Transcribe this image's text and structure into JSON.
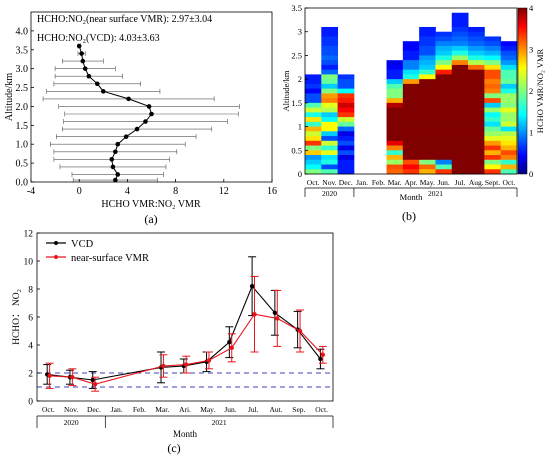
{
  "panel_labels": {
    "a": "(a)",
    "b": "(b)",
    "c": "(c)"
  },
  "colors": {
    "black_series": "#000000",
    "red_series": "#e8141b",
    "ref_lines": "#4040c0"
  },
  "chart_data": [
    {
      "id": "a",
      "type": "line",
      "xlabel": "HCHO VMR:NO₂ VMR",
      "ylabel": "Altitude/km",
      "xlim": [
        -4,
        16
      ],
      "ylim": [
        0,
        4.5
      ],
      "xticks": [
        -4,
        0,
        4,
        8,
        12,
        16
      ],
      "yticks": [
        0.0,
        0.5,
        1.0,
        1.5,
        2.0,
        2.5,
        3.0,
        3.5,
        4.0
      ],
      "ytick_labels": [
        "0.0",
        "0.5",
        "1.0",
        "1.5",
        "2.0",
        "2.5",
        "3.0",
        "3.5",
        "4.0"
      ],
      "annotations": [
        {
          "text": "HCHO:NO₂(near surface VMR):  2.97±3.04"
        },
        {
          "text": "HCHO:NO₂(VCD):  4.03±3.63"
        }
      ],
      "series": [
        {
          "points": [
            {
              "alt": 0.05,
              "x": 3.0,
              "err": 3.5
            },
            {
              "alt": 0.2,
              "x": 3.2,
              "err": 3.8
            },
            {
              "alt": 0.4,
              "x": 2.8,
              "err": 4.4
            },
            {
              "alt": 0.6,
              "x": 2.7,
              "err": 4.8
            },
            {
              "alt": 0.8,
              "x": 3.0,
              "err": 5.1
            },
            {
              "alt": 1.0,
              "x": 3.2,
              "err": 5.6
            },
            {
              "alt": 1.2,
              "x": 3.9,
              "err": 5.8
            },
            {
              "alt": 1.4,
              "x": 4.8,
              "err": 6.2
            },
            {
              "alt": 1.6,
              "x": 5.5,
              "err": 6.8
            },
            {
              "alt": 1.8,
              "x": 6.0,
              "err": 7.2
            },
            {
              "alt": 2.0,
              "x": 5.8,
              "err": 7.5
            },
            {
              "alt": 2.2,
              "x": 4.1,
              "err": 7.1
            },
            {
              "alt": 2.4,
              "x": 2.0,
              "err": 4.7
            },
            {
              "alt": 2.6,
              "x": 1.5,
              "err": 3.6
            },
            {
              "alt": 2.8,
              "x": 0.8,
              "err": 2.8
            },
            {
              "alt": 3.0,
              "x": 0.5,
              "err": 2.5
            },
            {
              "alt": 3.2,
              "x": 0.3,
              "err": 1.7
            },
            {
              "alt": 3.4,
              "x": 0.2,
              "err": 0.3
            },
            {
              "alt": 3.6,
              "x": 0.0,
              "err": 0.1
            }
          ]
        }
      ]
    },
    {
      "id": "b",
      "type": "heatmap",
      "ylabel": "Altitude/km",
      "xlabel": "Month",
      "colorbar_label": "HCHO VMR/NO₂ VMR",
      "zlim": [
        0,
        4
      ],
      "colorbar_ticks": [
        0,
        1,
        2,
        3,
        4
      ],
      "ylim": [
        0,
        3.5
      ],
      "yticks": [
        0.0,
        0.5,
        1.0,
        1.5,
        2.0,
        2.5,
        3.0,
        3.5
      ],
      "ytick_labels": [
        "0",
        "0.5",
        "1",
        "1.5",
        "2",
        "2.5",
        "3",
        "3.5"
      ],
      "months": [
        "Oct.",
        "Nov.",
        "Dec.",
        "Jan.",
        "Feb.",
        "Mar.",
        "Apr.",
        "May.",
        "Jun.",
        "Jul.",
        "Aug.",
        "Sept.",
        "Oct."
      ],
      "years": [
        {
          "label": "2020",
          "months": 3
        },
        {
          "label": "2021",
          "months": 10
        }
      ],
      "altitude_bins": [
        0.05,
        0.15,
        0.25,
        0.35,
        0.45,
        0.55,
        0.65,
        0.75,
        0.85,
        0.95,
        1.05,
        1.15,
        1.25,
        1.35,
        1.45,
        1.55,
        1.65,
        1.75,
        1.85,
        1.95,
        2.05,
        2.15,
        2.25,
        2.35,
        2.45,
        2.55,
        2.65,
        2.75,
        2.85,
        2.95,
        3.05,
        3.15,
        3.25,
        3.35
      ],
      "columns_top_to_bottom": [
        [
          null,
          null,
          null,
          null,
          null,
          null,
          null,
          null,
          null,
          null,
          null,
          null,
          null,
          0.6,
          0.6,
          0.7,
          0.5,
          0.8,
          0.8,
          1.8,
          2.3,
          1.6,
          2.6,
          1.7,
          2.8,
          2.3,
          2.6,
          3.3,
          2.0,
          2.7,
          1.1,
          1.3,
          1.5,
          2.0
        ],
        [
          null,
          null,
          null,
          0.6,
          0.6,
          0.7,
          0.7,
          0.8,
          0.8,
          0.9,
          0.8,
          0.6,
          0.9,
          2.0,
          1.9,
          1.3,
          2.0,
          2.9,
          3.0,
          2.4,
          2.2,
          1.3,
          1.5,
          2.5,
          2.5,
          1.3,
          0.8,
          2.3,
          1.7,
          2.4,
          1.4,
          1.6,
          0.8,
          1.8
        ],
        [
          null,
          null,
          null,
          null,
          null,
          null,
          null,
          null,
          null,
          null,
          null,
          null,
          null,
          0.7,
          0.8,
          0.8,
          1.5,
          3.3,
          3.4,
          3.7,
          3.5,
          3.3,
          2.3,
          1.9,
          0.9,
          0.4,
          0.6,
          0.8,
          0.4,
          0.8,
          0.4,
          0.6,
          0.6,
          0.6
        ],
        [
          null,
          null,
          null,
          null,
          null,
          null,
          null,
          null,
          null,
          null,
          null,
          null,
          null,
          null,
          null,
          null,
          null,
          null,
          null,
          null,
          null,
          null,
          null,
          null,
          null,
          null,
          null,
          null,
          null,
          null,
          null,
          null,
          null,
          null
        ],
        [
          null,
          null,
          null,
          null,
          null,
          null,
          null,
          null,
          null,
          null,
          null,
          null,
          null,
          null,
          null,
          null,
          null,
          null,
          null,
          null,
          null,
          null,
          null,
          null,
          null,
          null,
          null,
          null,
          null,
          null,
          null,
          null,
          null,
          null
        ],
        [
          null,
          null,
          null,
          null,
          null,
          null,
          null,
          null,
          null,
          null,
          0.4,
          0.5,
          0.6,
          0.6,
          1.3,
          1.8,
          2.0,
          2.0,
          2.8,
          3.8,
          4.1,
          4.4,
          4.4,
          4.4,
          4.4,
          4.4,
          4.4,
          3.6,
          3.0,
          1.7,
          2.8,
          2.1,
          3.2,
          3.1
        ],
        [
          null,
          null,
          null,
          null,
          null,
          null,
          0.5,
          0.5,
          0.6,
          0.6,
          1.0,
          1.0,
          1.4,
          1.6,
          2.9,
          4.4,
          4.4,
          4.4,
          4.4,
          4.4,
          4.4,
          4.4,
          4.4,
          4.4,
          4.4,
          4.4,
          4.4,
          4.4,
          4.4,
          4.4,
          4.4,
          3.2,
          3.5,
          3.3
        ],
        [
          null,
          null,
          null,
          0.6,
          0.6,
          0.7,
          0.7,
          0.8,
          0.8,
          1.1,
          1.2,
          1.3,
          1.7,
          2.5,
          4.4,
          4.4,
          4.4,
          4.4,
          4.4,
          4.4,
          4.4,
          4.4,
          4.4,
          4.4,
          4.4,
          4.4,
          4.4,
          4.4,
          4.4,
          4.4,
          4.4,
          2.0,
          3.1,
          2.8
        ],
        [
          null,
          null,
          null,
          null,
          0.7,
          0.8,
          1.0,
          1.2,
          1.3,
          1.6,
          2.0,
          2.5,
          3.4,
          4.4,
          4.4,
          4.4,
          4.4,
          4.4,
          4.4,
          4.4,
          4.4,
          4.4,
          4.4,
          4.4,
          4.4,
          4.4,
          4.4,
          4.4,
          4.4,
          4.4,
          4.4,
          1.0,
          1.8,
          3.3
        ],
        [
          0.6,
          0.6,
          0.6,
          0.7,
          0.8,
          0.9,
          1.0,
          1.3,
          1.6,
          2.1,
          3.0,
          4.4,
          4.4,
          4.4,
          4.4,
          4.4,
          4.4,
          4.4,
          4.4,
          4.4,
          4.4,
          4.4,
          4.4,
          4.4,
          4.4,
          4.4,
          4.4,
          4.4,
          4.4,
          4.4,
          4.4,
          4.4,
          4.4,
          4.4
        ],
        [
          null,
          null,
          null,
          0.6,
          0.7,
          0.8,
          0.9,
          1.1,
          1.3,
          1.6,
          2.2,
          3.1,
          4.4,
          4.4,
          4.4,
          4.4,
          4.4,
          4.4,
          4.4,
          4.4,
          4.4,
          4.4,
          4.4,
          4.4,
          4.4,
          4.4,
          4.4,
          4.4,
          4.4,
          4.4,
          4.4,
          4.4,
          4.4,
          4.4
        ],
        [
          null,
          null,
          null,
          null,
          null,
          0.7,
          0.8,
          1.0,
          1.2,
          1.5,
          2.0,
          2.6,
          3.2,
          3.2,
          3.0,
          3.1,
          3.0,
          2.0,
          3.2,
          1.3,
          2.1,
          1.5,
          1.7,
          1.4,
          1.9,
          2.1,
          2.4,
          2.9,
          3.3,
          2.8,
          3.3,
          2.0,
          2.5,
          3.3
        ],
        [
          null,
          null,
          null,
          null,
          null,
          null,
          0.5,
          0.6,
          0.8,
          0.9,
          1.1,
          1.4,
          1.8,
          1.8,
          1.9,
          1.3,
          1.6,
          2.1,
          2.1,
          2.0,
          2.4,
          2.1,
          2.1,
          2.3,
          1.4,
          2.2,
          2.4,
          2.6,
          2.8,
          3.2,
          3.0,
          1.7,
          2.8,
          1.8
        ]
      ]
    },
    {
      "id": "c",
      "type": "line",
      "ylabel": "HCHO： NO₂",
      "xlabel": "Month",
      "ylim": [
        0,
        12
      ],
      "yticks": [
        0,
        2,
        4,
        6,
        8,
        10,
        12
      ],
      "months": [
        "Oct.",
        "Nov.",
        "Dec.",
        "Jan.",
        "Feb.",
        "Mar.",
        "Ari.",
        "May.",
        "Jun.",
        "Jul.",
        "Aut.",
        "Sep.",
        "Oct."
      ],
      "years": [
        {
          "label": "2020",
          "months": 3
        },
        {
          "label": "2021",
          "months": 10
        }
      ],
      "reference_lines": [
        1,
        2
      ],
      "series": [
        {
          "name": "VCD",
          "color": "#000000",
          "points": [
            {
              "month_index": 0,
              "y": 1.9,
              "err": 0.7
            },
            {
              "month_index": 1,
              "y": 1.7,
              "err": 0.5
            },
            {
              "month_index": 2,
              "y": 1.5,
              "err": 0.6
            },
            {
              "month_index": 5,
              "y": 2.4,
              "err": 1.1
            },
            {
              "month_index": 6,
              "y": 2.5,
              "err": 0.5
            },
            {
              "month_index": 7,
              "y": 2.8,
              "err": 0.7
            },
            {
              "month_index": 8,
              "y": 4.2,
              "err": 1.1
            },
            {
              "month_index": 9,
              "y": 8.2,
              "err": 2.1
            },
            {
              "month_index": 10,
              "y": 6.3,
              "err": 1.6
            },
            {
              "month_index": 11,
              "y": 5.1,
              "err": 1.3
            },
            {
              "month_index": 12,
              "y": 3.0,
              "err": 0.7
            }
          ]
        },
        {
          "name": "near-surface VMR",
          "color": "#e8141b",
          "points": [
            {
              "month_index": 0,
              "y": 1.8,
              "err": 0.9
            },
            {
              "month_index": 1,
              "y": 1.7,
              "err": 0.6
            },
            {
              "month_index": 2,
              "y": 1.2,
              "err": 0.5
            },
            {
              "month_index": 5,
              "y": 2.5,
              "err": 0.8
            },
            {
              "month_index": 6,
              "y": 2.6,
              "err": 0.6
            },
            {
              "month_index": 7,
              "y": 2.9,
              "err": 0.6
            },
            {
              "month_index": 8,
              "y": 3.8,
              "err": 1.0
            },
            {
              "month_index": 9,
              "y": 6.2,
              "err": 2.7
            },
            {
              "month_index": 10,
              "y": 5.9,
              "err": 2.0
            },
            {
              "month_index": 11,
              "y": 5.0,
              "err": 1.5
            },
            {
              "month_index": 12,
              "y": 3.3,
              "err": 0.6
            }
          ]
        }
      ]
    }
  ]
}
